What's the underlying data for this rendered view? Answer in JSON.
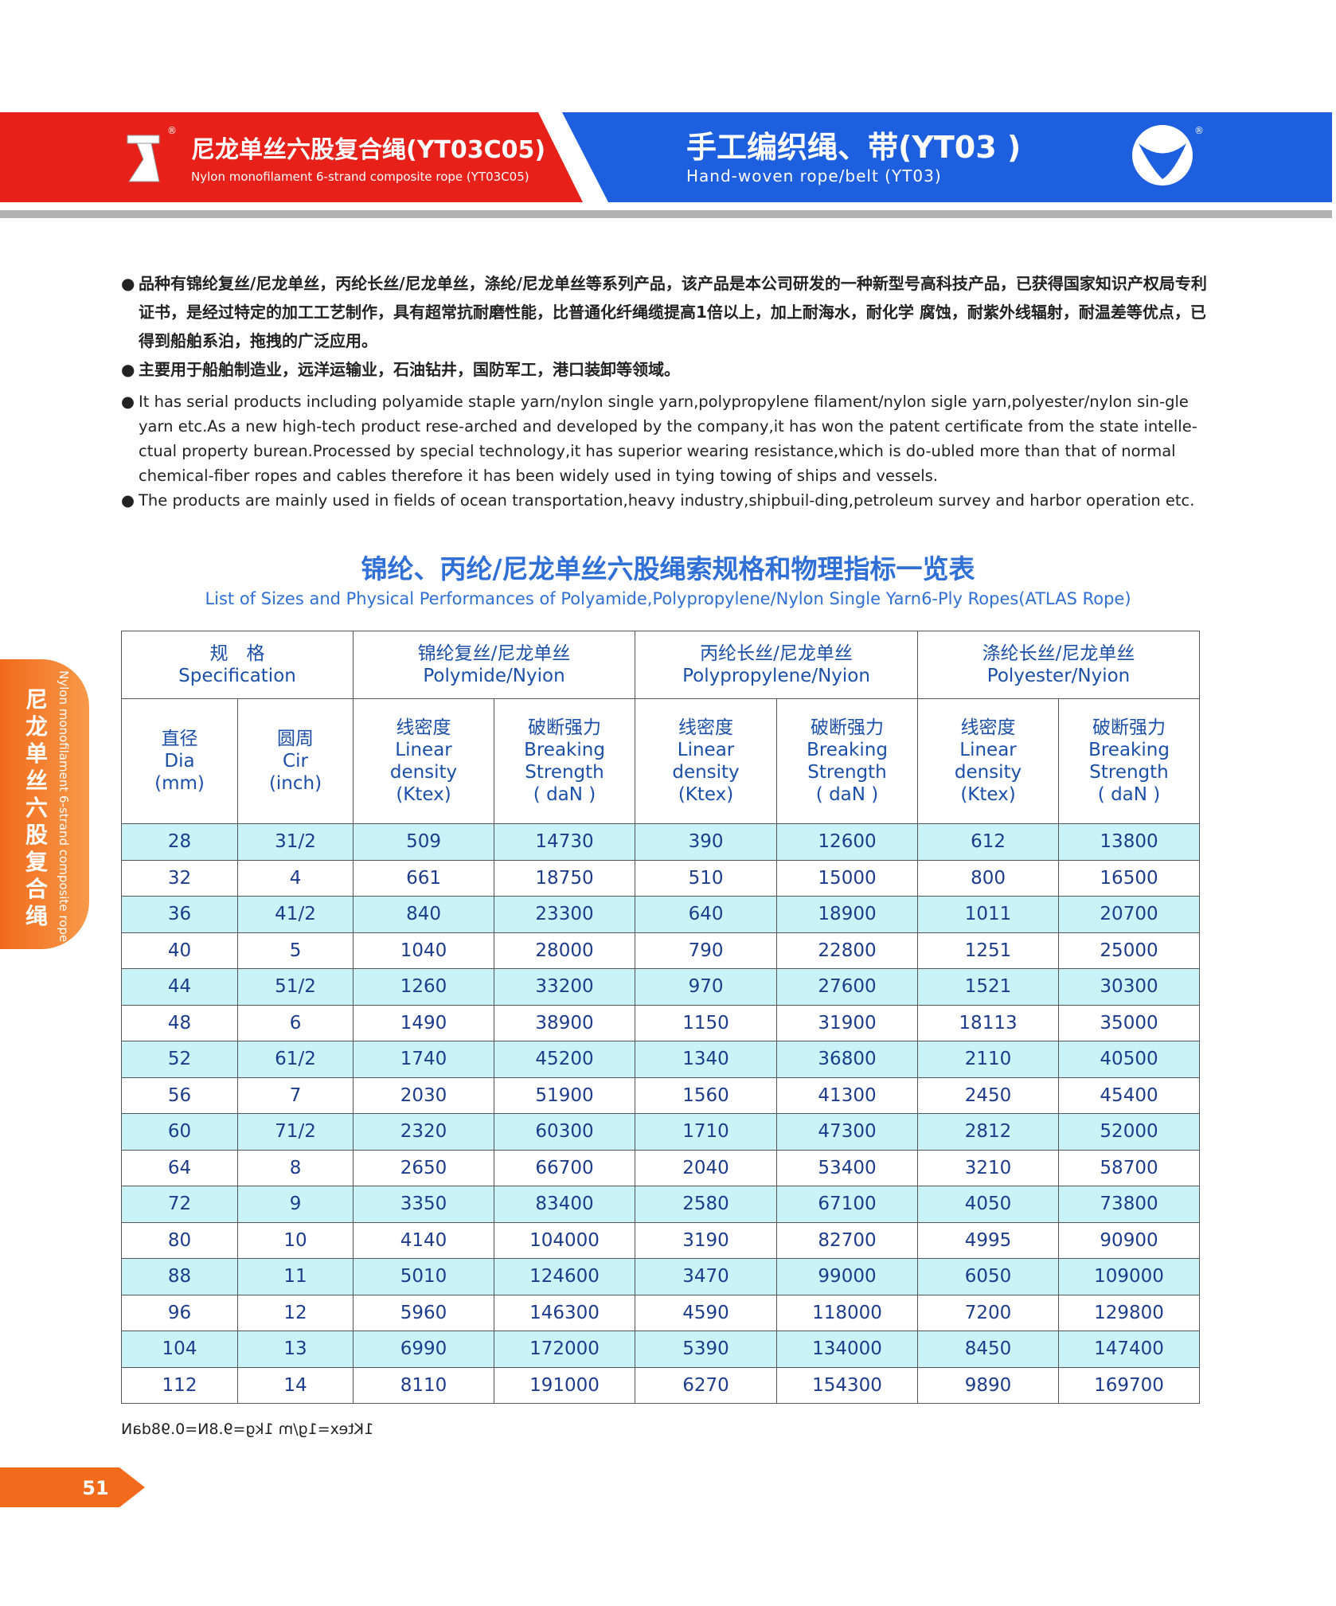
{
  "header": {
    "left_title_cn": "尼龙单丝六股复合绳(YT03C05)",
    "left_title_en": "Nylon monofilament 6-strand composite rope (YT03C05)",
    "right_title_cn": "手工编织绳、带(YT03 )",
    "right_title_en": "Hand-woven rope/belt (YT03)",
    "registered": "®"
  },
  "side_tab": {
    "cn": "尼龙单丝六股复合绳",
    "en": "Nylon monofilament 6-strand composite rope"
  },
  "intro": {
    "cn_bullets": [
      "品种有锦纶复丝/尼龙单丝，丙纶长丝/尼龙单丝，涤纶/尼龙单丝等系列产品，该产品是本公司研发的一种新型号高科技产品，已获得国家知识产权局专利证书，是经过特定的加工工艺制作，具有超常抗耐磨性能，比普通化纤绳缆提高1倍以上，加上耐海水，耐化学 腐蚀，耐紫外线辐射，耐温差等优点，已得到船舶系泊，拖拽的广泛应用。",
      "主要用于船舶制造业，远洋运输业，石油钻井，国防军工，港口装卸等领域。"
    ],
    "en_bullets": [
      "It has serial products including polyamide staple yarn/nylon single yarn,polypropylene filament/nylon sigle yarn,polyester/nylon sin-gle yarn etc.As a new high-tech product rese-arched and developed by the company,it has won the patent certificate from the state intelle-ctual property burean.Processed by special technology,it has superior wearing resistance,which is do-ubled more than that of normal chemical-fiber ropes and cables therefore it has been widely used in tying towing of ships and vessels.",
      "The products are mainly used in fields of ocean transportation,heavy industry,shipbuil-ding,petroleum survey and harbor operation etc."
    ]
  },
  "table": {
    "title": "锦纶、丙纶/尼龙单丝六股绳索规格和物理指标一览表",
    "subtitle": "List of Sizes and Physical Performances of Polyamide,Polypropylene/Nylon Single Yarn6-Ply Ropes(ATLAS Rope)",
    "group_header": [
      [
        "规　格",
        "Specification"
      ],
      [
        "锦纶复丝/尼龙单丝",
        "Polymide/Nyion"
      ],
      [
        "丙纶长丝/尼龙单丝",
        "Polypropylene/Nyion"
      ],
      [
        "涤纶长丝/尼龙单丝",
        "Polyester/Nyion"
      ]
    ],
    "sub_header": [
      [
        "直径",
        "Dia",
        "(mm)"
      ],
      [
        "圆周",
        "Cir",
        "(inch)"
      ],
      [
        "线密度",
        "Linear",
        "density",
        "(Ktex)"
      ],
      [
        "破断强力",
        "Breaking",
        "Strength",
        "( daN )"
      ],
      [
        "线密度",
        "Linear",
        "density",
        "(Ktex)"
      ],
      [
        "破断强力",
        "Breaking",
        "Strength",
        "( daN )"
      ],
      [
        "线密度",
        "Linear",
        "density",
        "(Ktex)"
      ],
      [
        "破断强力",
        "Breaking",
        "Strength",
        "( daN )"
      ]
    ],
    "rows": [
      [
        28,
        "31/2",
        509,
        14730,
        390,
        12600,
        612,
        13800
      ],
      [
        32,
        4,
        661,
        18750,
        510,
        15000,
        800,
        16500
      ],
      [
        36,
        "41/2",
        840,
        23300,
        640,
        18900,
        1011,
        20700
      ],
      [
        40,
        5,
        1040,
        28000,
        790,
        22800,
        1251,
        25000
      ],
      [
        44,
        "51/2",
        1260,
        33200,
        970,
        27600,
        1521,
        30300
      ],
      [
        48,
        6,
        1490,
        38900,
        1150,
        31900,
        18113,
        35000
      ],
      [
        52,
        "61/2",
        1740,
        45200,
        1340,
        36800,
        2110,
        40500
      ],
      [
        56,
        7,
        2030,
        51900,
        1560,
        41300,
        2450,
        45400
      ],
      [
        60,
        "71/2",
        2320,
        60300,
        1710,
        47300,
        2812,
        52000
      ],
      [
        64,
        8,
        2650,
        66700,
        2040,
        53400,
        3210,
        58700
      ],
      [
        72,
        9,
        3350,
        83400,
        2580,
        67100,
        4050,
        73800
      ],
      [
        80,
        10,
        4140,
        104000,
        3190,
        82700,
        4995,
        90900
      ],
      [
        88,
        11,
        5010,
        124600,
        3470,
        99000,
        6050,
        109000
      ],
      [
        96,
        12,
        5960,
        146300,
        4590,
        118000,
        7200,
        129800
      ],
      [
        104,
        13,
        6990,
        172000,
        5390,
        134000,
        8450,
        147400
      ],
      [
        112,
        14,
        8110,
        191000,
        6270,
        154300,
        9890,
        169700
      ]
    ],
    "footnote": "1Ktex=1g/m  1kg=9.8N=0.98daN"
  },
  "page_number": "51"
}
